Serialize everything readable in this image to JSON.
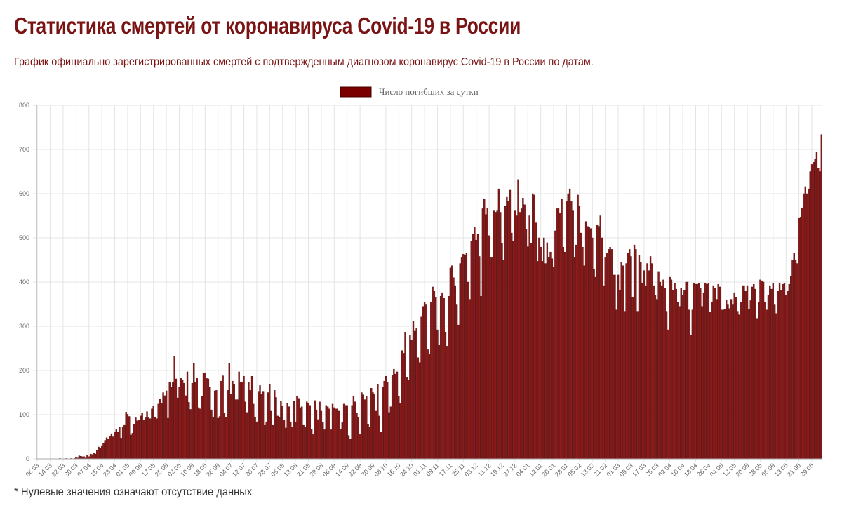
{
  "header": {
    "title": "Статистика смертей от коронавируса Covid-19 в России",
    "subtitle": "График официально зарегистрированных смертей с подтвержденным диагнозом коронавирус Covid-19 в России по датам."
  },
  "footnote": "* Нулевые значения означают отсутствие данных",
  "colors": {
    "bar_fill": "#8b1a1a",
    "bar_stroke": "#4a0000",
    "title": "#7a1414",
    "grid": "#e4e4e4"
  },
  "chart_data": {
    "type": "bar",
    "title": "",
    "xlabel": "",
    "ylabel": "",
    "ylim": [
      0,
      800
    ],
    "yticks": [
      0,
      100,
      200,
      300,
      400,
      500,
      600,
      700,
      800
    ],
    "grid": true,
    "legend_position": "top-center",
    "series": [
      {
        "name": "Число погибших за сутки"
      }
    ],
    "tick_labels": [
      "06.03",
      "14.03",
      "22.03",
      "30.03",
      "07.04",
      "15.04",
      "23.04",
      "01.05",
      "09.05",
      "17.05",
      "25.05",
      "02.06",
      "10.06",
      "18.06",
      "26.06",
      "04.07",
      "12.07",
      "20.07",
      "28.07",
      "05.08",
      "13.08",
      "21.08",
      "29.08",
      "06.09",
      "14.09",
      "22.09",
      "30.09",
      "08.10",
      "16.10",
      "24.10",
      "01.11",
      "09.11",
      "17.11",
      "25.11",
      "03.12",
      "11.12",
      "19.12",
      "27.12",
      "04.01",
      "12.01",
      "20.01",
      "28.01",
      "05.02",
      "13.02",
      "21.02",
      "01.03",
      "09.03",
      "17.03",
      "25.03",
      "02.04",
      "10.04",
      "18.04",
      "26.04",
      "04.05",
      "12.05",
      "20.05",
      "28.05",
      "05.06",
      "13.06",
      "21.06",
      "29.06"
    ],
    "tick_every_days": 8,
    "values": [
      0,
      0,
      0,
      0,
      0,
      0,
      0,
      0,
      0,
      0,
      0,
      0,
      0,
      0,
      1,
      0,
      0,
      0,
      1,
      0,
      0,
      1,
      0,
      1,
      3,
      2,
      7,
      6,
      5,
      5,
      2,
      9,
      5,
      11,
      10,
      14,
      11,
      20,
      27,
      24,
      30,
      36,
      42,
      48,
      44,
      51,
      57,
      50,
      61,
      66,
      60,
      72,
      47,
      72,
      76,
      106,
      101,
      96,
      54,
      58,
      78,
      93,
      86,
      88,
      97,
      104,
      87,
      93,
      107,
      93,
      91,
      113,
      119,
      95,
      91,
      124,
      135,
      125,
      150,
      143,
      154,
      92,
      174,
      162,
      174,
      232,
      181,
      138,
      162,
      182,
      178,
      171,
      143,
      197,
      128,
      112,
      171,
      216,
      174,
      182,
      116,
      113,
      142,
      194,
      195,
      182,
      181,
      162,
      111,
      95,
      154,
      155,
      92,
      96,
      176,
      188,
      104,
      94,
      155,
      216,
      147,
      176,
      168,
      134,
      134,
      197,
      174,
      174,
      187,
      129,
      105,
      174,
      155,
      187,
      124,
      95,
      84,
      153,
      166,
      147,
      153,
      76,
      84,
      150,
      168,
      108,
      76,
      155,
      139,
      97,
      95,
      131,
      120,
      88,
      70,
      125,
      118,
      84,
      72,
      130,
      84,
      142,
      137,
      116,
      118,
      76,
      71,
      129,
      126,
      121,
      68,
      55,
      132,
      111,
      89,
      129,
      108,
      82,
      66,
      121,
      118,
      113,
      66,
      124,
      116,
      113,
      113,
      108,
      68,
      82,
      124,
      121,
      121,
      53,
      45,
      121,
      142,
      129,
      103,
      95,
      55,
      150,
      145,
      134,
      142,
      79,
      71,
      160,
      150,
      147,
      108,
      168,
      97,
      60,
      163,
      176,
      187,
      174,
      105,
      118,
      189,
      203,
      192,
      197,
      142,
      126,
      245,
      239,
      287,
      184,
      179,
      279,
      268,
      311,
      289,
      295,
      229,
      218,
      321,
      345,
      355,
      350,
      247,
      237,
      355,
      389,
      379,
      366,
      292,
      258,
      368,
      376,
      363,
      287,
      255,
      368,
      432,
      437,
      410,
      392,
      350,
      303,
      442,
      455,
      463,
      461,
      466,
      400,
      361,
      492,
      508,
      524,
      495,
      508,
      458,
      368,
      566,
      587,
      553,
      568,
      505,
      455,
      455,
      561,
      558,
      561,
      611,
      558,
      487,
      450,
      571,
      592,
      582,
      608,
      511,
      492,
      561,
      550,
      632,
      558,
      566,
      590,
      575,
      520,
      480,
      550,
      487,
      600,
      597,
      534,
      447,
      500,
      479,
      447,
      500,
      442,
      489,
      455,
      468,
      453,
      434,
      516,
      566,
      568,
      555,
      587,
      479,
      468,
      582,
      600,
      611,
      582,
      561,
      455,
      484,
      597,
      571,
      511,
      479,
      437,
      537,
      526,
      524,
      521,
      500,
      429,
      411,
      529,
      526,
      550,
      500,
      392,
      455,
      466,
      474,
      479,
      474,
      416,
      416,
      337,
      416,
      382,
      445,
      437,
      334,
      442,
      466,
      474,
      458,
      366,
      484,
      474,
      334,
      461,
      445,
      397,
      426,
      392,
      442,
      426,
      458,
      442,
      392,
      371,
      361,
      424,
      400,
      392,
      405,
      387,
      334,
      292,
      411,
      405,
      382,
      397,
      384,
      355,
      345,
      387,
      371,
      382,
      400,
      400,
      337,
      279,
      337,
      397,
      395,
      395,
      397,
      387,
      345,
      376,
      397,
      395,
      397,
      332,
      355,
      392,
      387,
      361,
      395,
      389,
      337,
      337,
      339,
      360,
      350,
      340,
      361,
      350,
      376,
      366,
      334,
      326,
      355,
      392,
      392,
      379,
      392,
      339,
      358,
      389,
      395,
      384,
      318,
      355,
      405,
      403,
      400,
      355,
      337,
      371,
      392,
      384,
      397,
      350,
      329,
      379,
      397,
      382,
      395,
      397,
      371,
      379,
      395,
      413,
      450,
      466,
      450,
      442,
      545,
      547,
      568,
      600,
      616,
      600,
      611,
      650,
      666,
      671,
      679,
      695,
      658,
      650,
      734
    ]
  }
}
